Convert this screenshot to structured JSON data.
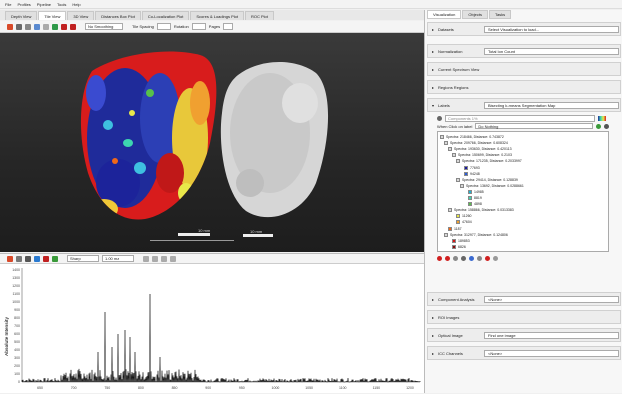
{
  "menu": [
    "File",
    "Profiles",
    "Pipeline",
    "Tools",
    "Help"
  ],
  "main_tabs": [
    {
      "label": "Depth View",
      "active": false
    },
    {
      "label": "Tile View",
      "active": true
    },
    {
      "label": "3D View",
      "active": false
    },
    {
      "label": "Distances Box Plot",
      "active": false
    },
    {
      "label": "Co-Localization Plot",
      "active": false
    },
    {
      "label": "Scores & Loadings Plot",
      "active": false
    },
    {
      "label": "ROC Plot",
      "active": false
    }
  ],
  "toolbar": {
    "combo_value": "No Smoothing",
    "field1_label": "Tile Spacing",
    "field2_label": "Rotation",
    "field3_label": "Pages"
  },
  "viewer": {
    "scalebar_left": "10 mm",
    "scalebar_right": "10 mm"
  },
  "plot_toolbar": {
    "combo1": "Sharp",
    "combo2": "1.00 mz"
  },
  "plot": {
    "ylabel": "Absolute Intensity",
    "yticks": [
      "1400",
      "1300",
      "1200",
      "1100",
      "1000",
      "900",
      "800",
      "700",
      "600",
      "500",
      "400",
      "300",
      "200",
      "100",
      "0"
    ],
    "xticks": [
      "650",
      "700",
      "750",
      "800",
      "850",
      "900",
      "950",
      "1000",
      "1050",
      "1100",
      "1150",
      "1200"
    ]
  },
  "right_panel": {
    "tabs": [
      {
        "label": "Visualization",
        "active": true
      },
      {
        "label": "Objects",
        "active": false
      },
      {
        "label": "Tasks",
        "active": false
      }
    ],
    "rows": [
      {
        "label": "Datasets",
        "value": "Select Visualization to load..."
      },
      {
        "label": "Normalization",
        "value": "Total Ion Count"
      },
      {
        "label": "Current Spectrum View",
        "value": ""
      },
      {
        "label": "Regions Regions",
        "value": ""
      },
      {
        "label": "Labels",
        "value": "Bisecting k-means Segmentation Map"
      }
    ],
    "search_placeholder": "Components 1%",
    "click_label": "When Click on label",
    "click_value": "Do Nothing",
    "tree": [
      {
        "label": "Spectra: 218466, Distance: 0.743872",
        "color": "#d9d9d9"
      },
      {
        "label": "Spectra: 209766, Distance: 0.608324",
        "color": "#d9d9d9"
      },
      {
        "label": "Spectra: 193630, Distance: 0.420113",
        "color": "#d9d9d9"
      },
      {
        "label": "Spectra: 150699, Distance: 0.2103",
        "color": "#d9d9d9"
      },
      {
        "label": "Spectra: 171235, Distance: 0.2033997",
        "color": "#d9d9d9"
      },
      {
        "label": "77693",
        "color": "#1a1aa0"
      },
      {
        "label": "94248",
        "color": "#2d5ed6"
      },
      {
        "label": "Spectra: 29414, Distance: 0.128839",
        "color": "#d9d9d9"
      },
      {
        "label": "Spectra: 13692, Distance: 0.0288661",
        "color": "#d9d9d9"
      },
      {
        "label": "14985",
        "color": "#1eb4d4"
      },
      {
        "label": "8819",
        "color": "#3dd6b0"
      },
      {
        "label": "4898",
        "color": "#57c14a"
      },
      {
        "label": "Spectra: 158866, Distance: 0.0313383",
        "color": "#d9d9d9"
      },
      {
        "label": "11260",
        "color": "#e8e84a"
      },
      {
        "label": "47604",
        "color": "#f0a030"
      },
      {
        "label": "1187",
        "color": "#f06818"
      },
      {
        "label": "Spectra: 312977, Distance: 0.124806",
        "color": "#d9d9d9"
      },
      {
        "label": "189853",
        "color": "#d41a1a"
      },
      {
        "label": "6826",
        "color": "#8a0a0a"
      }
    ],
    "bottom_rows": [
      {
        "label": "Component Analysis",
        "value": "<None>"
      },
      {
        "label": "ROI Images",
        "value": ""
      },
      {
        "label": "Optical Image",
        "value": "Find one image"
      },
      {
        "label": "ICC Channels",
        "value": "<None>"
      }
    ]
  }
}
